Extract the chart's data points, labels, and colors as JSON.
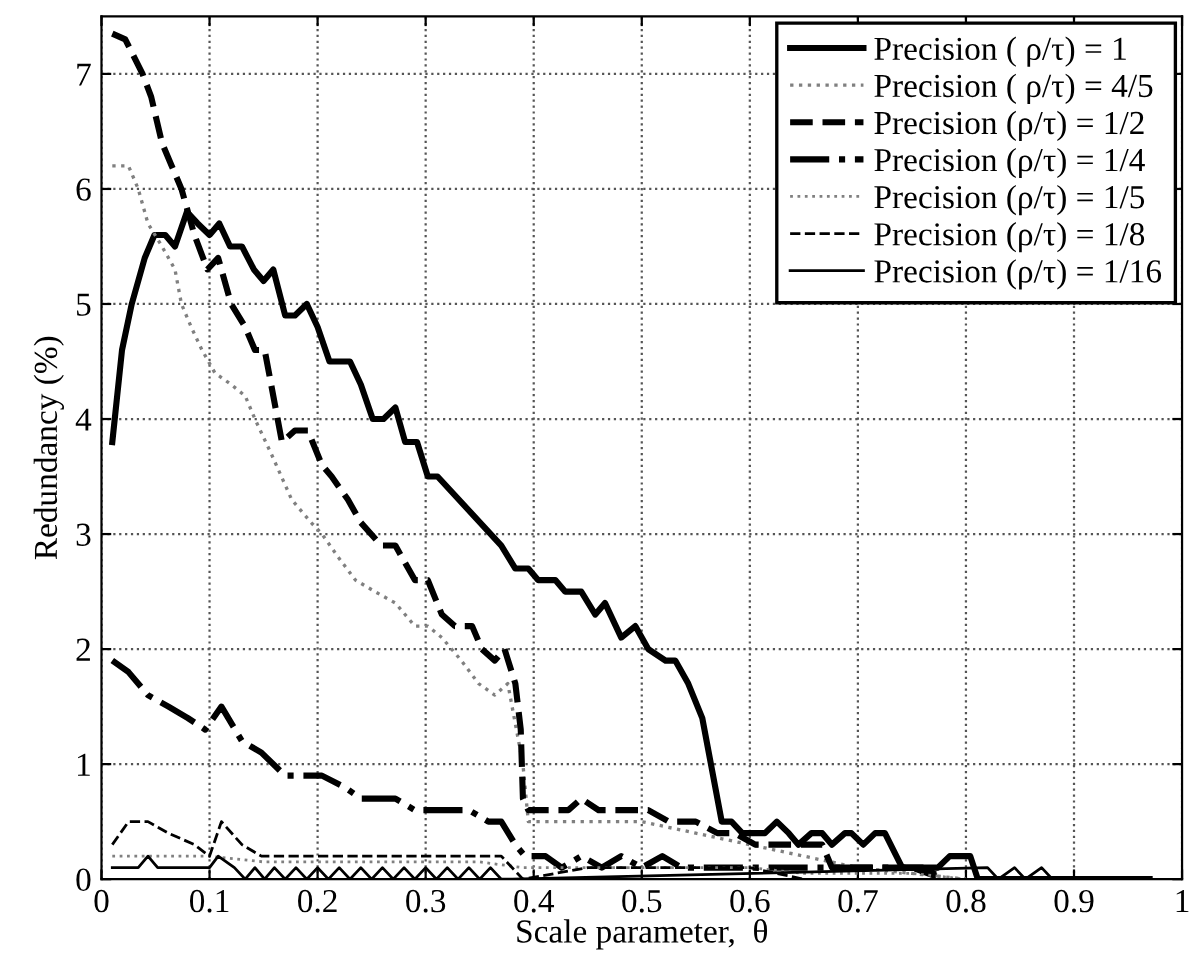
{
  "chart_data": {
    "type": "line",
    "xlabel": "Scale parameter,  θ",
    "ylabel": "Redundancy (%)",
    "xlim": [
      0,
      1
    ],
    "ylim": [
      0,
      7.5
    ],
    "xticks": [
      0,
      0.1,
      0.2,
      0.3,
      0.4,
      0.5,
      0.6,
      0.7,
      0.8,
      0.9,
      1
    ],
    "yticks": [
      0,
      1,
      2,
      3,
      4,
      5,
      6,
      7
    ],
    "grid": true,
    "legend": "top right",
    "marker": "none",
    "series": [
      {
        "name": "Precision ( ρ/τ) = 1",
        "color": "#000000",
        "line_style": "solid",
        "x": [
          0.01,
          0.019,
          0.028,
          0.04,
          0.049,
          0.059,
          0.068,
          0.079,
          0.089,
          0.1,
          0.109,
          0.119,
          0.13,
          0.141,
          0.15,
          0.159,
          0.17,
          0.179,
          0.19,
          0.2,
          0.211,
          0.23,
          0.24,
          0.251,
          0.261,
          0.272,
          0.281,
          0.292,
          0.302,
          0.311,
          0.37,
          0.383,
          0.395,
          0.404,
          0.42,
          0.429,
          0.444,
          0.457,
          0.466,
          0.481,
          0.494,
          0.506,
          0.522,
          0.531,
          0.543,
          0.556,
          0.574,
          0.583,
          0.593,
          0.614,
          0.625,
          0.636,
          0.645,
          0.657,
          0.667,
          0.676,
          0.688,
          0.694,
          0.705,
          0.716,
          0.725,
          0.741,
          0.774,
          0.785,
          0.804,
          0.811,
          0.97
        ],
        "values": [
          3.8,
          4.6,
          5.0,
          5.4,
          5.6,
          5.6,
          5.5,
          5.8,
          5.7,
          5.6,
          5.7,
          5.5,
          5.5,
          5.3,
          5.2,
          5.3,
          4.9,
          4.9,
          5.0,
          4.8,
          4.5,
          4.5,
          4.3,
          4.0,
          4.0,
          4.1,
          3.8,
          3.8,
          3.5,
          3.5,
          2.9,
          2.7,
          2.7,
          2.6,
          2.6,
          2.5,
          2.5,
          2.3,
          2.4,
          2.1,
          2.2,
          2.0,
          1.9,
          1.9,
          1.7,
          1.4,
          0.5,
          0.5,
          0.4,
          0.4,
          0.5,
          0.4,
          0.3,
          0.4,
          0.4,
          0.3,
          0.4,
          0.4,
          0.3,
          0.4,
          0.4,
          0.1,
          0.1,
          0.2,
          0.2,
          0.0,
          0.0
        ]
      },
      {
        "name": "Precision ( ρ/τ) = 4/5",
        "color": "#808080",
        "line_style": "dotted",
        "x": [
          0.01,
          0.025,
          0.034,
          0.043,
          0.056,
          0.068,
          0.074,
          0.083,
          0.093,
          0.105,
          0.12,
          0.133,
          0.142,
          0.157,
          0.176,
          0.194,
          0.204,
          0.219,
          0.235,
          0.253,
          0.272,
          0.29,
          0.302,
          0.315,
          0.333,
          0.349,
          0.364,
          0.376,
          0.39,
          0.395,
          0.45,
          0.5,
          0.55,
          0.6,
          0.65,
          0.7,
          0.75,
          0.8
        ],
        "values": [
          6.2,
          6.2,
          6.0,
          5.7,
          5.5,
          5.3,
          5.0,
          4.8,
          4.6,
          4.4,
          4.3,
          4.2,
          4.0,
          3.7,
          3.3,
          3.1,
          3.0,
          2.8,
          2.6,
          2.5,
          2.4,
          2.2,
          2.2,
          2.1,
          1.9,
          1.7,
          1.6,
          1.7,
          1.0,
          0.5,
          0.5,
          0.5,
          0.4,
          0.3,
          0.2,
          0.1,
          0.05,
          0.0
        ]
      },
      {
        "name": "Precision (ρ/τ) = 1/2",
        "color": "#000000",
        "line_style": "dashed",
        "x": [
          0.01,
          0.022,
          0.038,
          0.046,
          0.056,
          0.065,
          0.074,
          0.086,
          0.098,
          0.108,
          0.12,
          0.133,
          0.142,
          0.151,
          0.157,
          0.167,
          0.179,
          0.191,
          0.204,
          0.213,
          0.228,
          0.24,
          0.259,
          0.272,
          0.29,
          0.302,
          0.315,
          0.327,
          0.343,
          0.352,
          0.364,
          0.373,
          0.383,
          0.388,
          0.39,
          0.395,
          0.413,
          0.432,
          0.444,
          0.46,
          0.475,
          0.494,
          0.506,
          0.525,
          0.55,
          0.57,
          0.586,
          0.605,
          0.63,
          0.65,
          0.667,
          0.676,
          0.69,
          0.715,
          0.75,
          0.78
        ],
        "values": [
          7.35,
          7.3,
          7.0,
          6.8,
          6.4,
          6.2,
          6.0,
          5.6,
          5.3,
          5.4,
          5.0,
          4.8,
          4.6,
          4.6,
          4.3,
          3.8,
          3.9,
          3.9,
          3.6,
          3.5,
          3.3,
          3.1,
          2.9,
          2.9,
          2.6,
          2.6,
          2.3,
          2.2,
          2.2,
          2.0,
          1.9,
          2.0,
          1.7,
          1.3,
          0.7,
          0.6,
          0.6,
          0.6,
          0.7,
          0.6,
          0.6,
          0.6,
          0.6,
          0.5,
          0.5,
          0.4,
          0.4,
          0.3,
          0.3,
          0.3,
          0.3,
          0.1,
          0.1,
          0.1,
          0.1,
          0.0
        ]
      },
      {
        "name": "Precision (ρ/τ) = 1/4",
        "color": "#000000",
        "line_style": "dashdot",
        "x": [
          0.01,
          0.025,
          0.043,
          0.062,
          0.08,
          0.096,
          0.111,
          0.13,
          0.148,
          0.17,
          0.185,
          0.204,
          0.225,
          0.24,
          0.259,
          0.272,
          0.29,
          0.305,
          0.315,
          0.34,
          0.358,
          0.37,
          0.383,
          0.392,
          0.411,
          0.426,
          0.444,
          0.463,
          0.481,
          0.5,
          0.519,
          0.537,
          0.556,
          0.69,
          0.76,
          0.78
        ],
        "values": [
          1.9,
          1.8,
          1.6,
          1.5,
          1.4,
          1.3,
          1.5,
          1.2,
          1.1,
          0.9,
          0.9,
          0.9,
          0.8,
          0.7,
          0.7,
          0.7,
          0.6,
          0.6,
          0.6,
          0.6,
          0.5,
          0.5,
          0.3,
          0.2,
          0.2,
          0.1,
          0.2,
          0.1,
          0.2,
          0.1,
          0.2,
          0.1,
          0.1,
          0.1,
          0.1,
          0.0
        ]
      },
      {
        "name": "Precision (ρ/τ) = 1/5",
        "color": "#808080",
        "line_style": "dotted",
        "x": [
          0.01,
          0.05,
          0.1,
          0.15,
          0.2,
          0.25,
          0.3,
          0.35,
          0.39,
          0.45,
          0.5,
          0.55,
          0.6,
          0.65,
          0.7,
          0.75,
          0.8
        ],
        "values": [
          0.2,
          0.2,
          0.2,
          0.15,
          0.15,
          0.15,
          0.15,
          0.15,
          0.1,
          0.1,
          0.1,
          0.1,
          0.1,
          0.05,
          0.05,
          0.05,
          0.0
        ]
      },
      {
        "name": "Precision (ρ/τ) = 1/8",
        "color": "#000000",
        "line_style": "dashed",
        "x": [
          0.01,
          0.025,
          0.043,
          0.062,
          0.086,
          0.1,
          0.111,
          0.13,
          0.148,
          0.17,
          0.204,
          0.235,
          0.265,
          0.29,
          0.32,
          0.35,
          0.37,
          0.39,
          0.45,
          0.5,
          0.55,
          0.6,
          0.65
        ],
        "values": [
          0.3,
          0.5,
          0.5,
          0.4,
          0.3,
          0.2,
          0.5,
          0.3,
          0.2,
          0.2,
          0.2,
          0.2,
          0.2,
          0.2,
          0.2,
          0.2,
          0.2,
          0.0,
          0.1,
          0.1,
          0.1,
          0.1,
          0.0
        ]
      },
      {
        "name": "Precision (ρ/τ) = 1/16",
        "color": "#000000",
        "line_style": "solid",
        "x": [
          0.01,
          0.034,
          0.043,
          0.052,
          0.1,
          0.108,
          0.123,
          0.133,
          0.142,
          0.151,
          0.16,
          0.17,
          0.18,
          0.19,
          0.2,
          0.21,
          0.22,
          0.23,
          0.24,
          0.25,
          0.26,
          0.27,
          0.28,
          0.29,
          0.3,
          0.31,
          0.32,
          0.33,
          0.34,
          0.35,
          0.36,
          0.37,
          0.38,
          0.82,
          0.83,
          0.845,
          0.855,
          0.87,
          0.88,
          0.97
        ],
        "values": [
          0.1,
          0.1,
          0.2,
          0.1,
          0.1,
          0.2,
          0.1,
          0.0,
          0.1,
          0.0,
          0.1,
          0.0,
          0.1,
          0.0,
          0.1,
          0.0,
          0.1,
          0.0,
          0.1,
          0.0,
          0.1,
          0.0,
          0.1,
          0.0,
          0.1,
          0.0,
          0.1,
          0.0,
          0.1,
          0.0,
          0.1,
          0.0,
          0.0,
          0.1,
          0.0,
          0.1,
          0.0,
          0.1,
          0.0,
          0.0
        ]
      }
    ]
  }
}
